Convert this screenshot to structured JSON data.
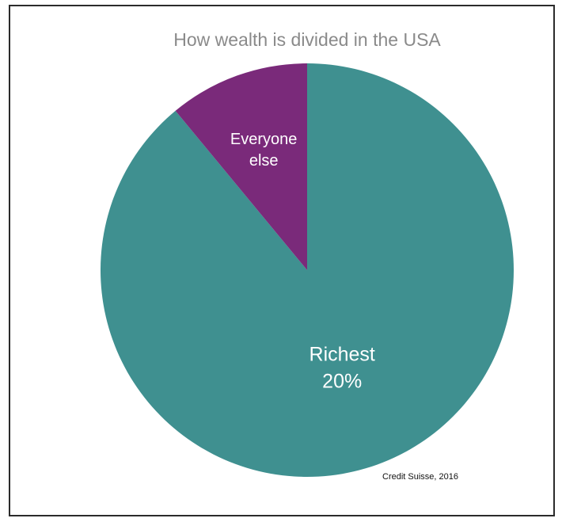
{
  "chart_data": {
    "type": "pie",
    "title": "How wealth is divided in the USA",
    "slices": [
      {
        "label_lines": [
          "Richest",
          "20%"
        ],
        "value": 89,
        "color": "#3f9090"
      },
      {
        "label_lines": [
          "Everyone",
          "else"
        ],
        "value": 11,
        "color": "#7a2a7a"
      }
    ],
    "start_angle": "12 o'clock",
    "direction": "clockwise",
    "annotations": [
      "Credit Suisse, 2016"
    ],
    "legend": "none"
  }
}
